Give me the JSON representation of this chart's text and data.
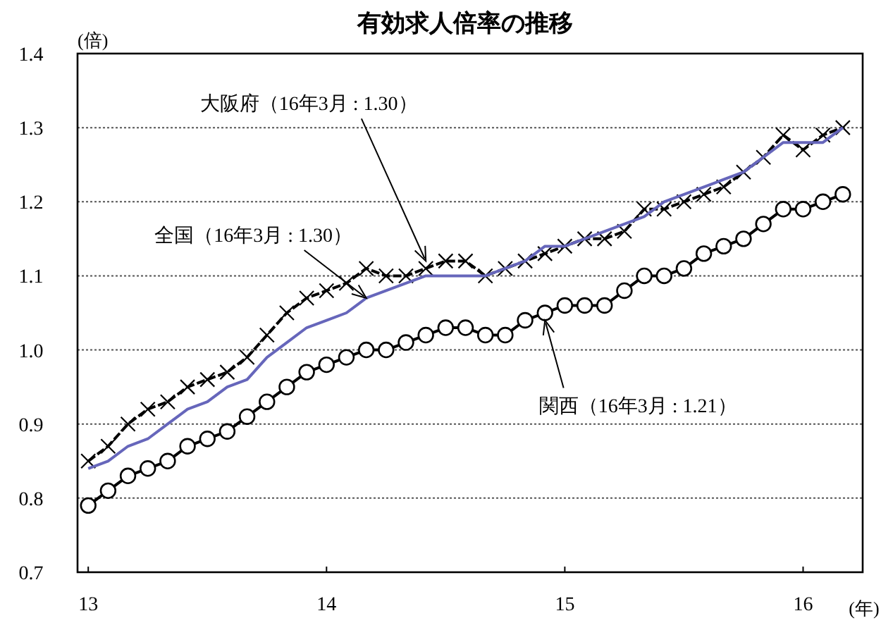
{
  "chart_data": {
    "type": "line",
    "title": "有効求人倍率の推移",
    "ylabel": "(倍)",
    "xlabel": "(年)",
    "x": [
      "2013-01",
      "2013-02",
      "2013-03",
      "2013-04",
      "2013-05",
      "2013-06",
      "2013-07",
      "2013-08",
      "2013-09",
      "2013-10",
      "2013-11",
      "2013-12",
      "2014-01",
      "2014-02",
      "2014-03",
      "2014-04",
      "2014-05",
      "2014-06",
      "2014-07",
      "2014-08",
      "2014-09",
      "2014-10",
      "2014-11",
      "2014-12",
      "2015-01",
      "2015-02",
      "2015-03",
      "2015-04",
      "2015-05",
      "2015-06",
      "2015-07",
      "2015-08",
      "2015-09",
      "2015-10",
      "2015-11",
      "2015-12",
      "2016-01",
      "2016-02",
      "2016-03"
    ],
    "series": [
      {
        "color": "#000000",
        "marker": "cross",
        "line_style": "dashed",
        "values": [
          0.85,
          0.87,
          0.9,
          0.92,
          0.93,
          0.95,
          0.96,
          0.97,
          0.99,
          1.02,
          1.05,
          1.07,
          1.08,
          1.09,
          1.11,
          1.1,
          1.1,
          1.11,
          1.12,
          1.12,
          1.1,
          1.11,
          1.12,
          1.13,
          1.14,
          1.15,
          1.15,
          1.16,
          1.19,
          1.19,
          1.2,
          1.21,
          1.22,
          1.24,
          1.26,
          1.29,
          1.27,
          1.29,
          1.3
        ]
      },
      {
        "color": "#6666bb",
        "marker": "none",
        "line_style": "solid",
        "values": [
          0.84,
          0.85,
          0.87,
          0.88,
          0.9,
          0.92,
          0.93,
          0.95,
          0.96,
          0.99,
          1.01,
          1.03,
          1.04,
          1.05,
          1.07,
          1.08,
          1.09,
          1.1,
          1.1,
          1.1,
          1.1,
          1.11,
          1.12,
          1.14,
          1.14,
          1.15,
          1.16,
          1.17,
          1.18,
          1.2,
          1.21,
          1.22,
          1.23,
          1.24,
          1.26,
          1.28,
          1.28,
          1.28,
          1.3
        ]
      },
      {
        "color": "#000000",
        "marker": "circle",
        "line_style": "solid",
        "values": [
          0.79,
          0.81,
          0.83,
          0.84,
          0.85,
          0.87,
          0.88,
          0.89,
          0.91,
          0.93,
          0.95,
          0.97,
          0.98,
          0.99,
          1.0,
          1.0,
          1.01,
          1.02,
          1.03,
          1.03,
          1.02,
          1.02,
          1.04,
          1.05,
          1.06,
          1.06,
          1.06,
          1.08,
          1.1,
          1.1,
          1.11,
          1.13,
          1.14,
          1.15,
          1.17,
          1.19,
          1.19,
          1.2,
          1.21
        ]
      }
    ],
    "xlim": [
      "2012-12-15",
      "2016-04-01"
    ],
    "xticks": [
      {
        "value": "2013-01",
        "label": "13"
      },
      {
        "value": "2014-01",
        "label": "14"
      },
      {
        "value": "2015-01",
        "label": "15"
      },
      {
        "value": "2016-01",
        "label": "16"
      }
    ],
    "ylim": [
      0.7,
      1.4
    ],
    "yticks": [
      {
        "value": 0.7,
        "label": "0.7"
      },
      {
        "value": 0.8,
        "label": "0.8"
      },
      {
        "value": 0.9,
        "label": "0.9"
      },
      {
        "value": 1.0,
        "label": "1.0"
      },
      {
        "value": 1.1,
        "label": "1.1"
      },
      {
        "value": 1.2,
        "label": "1.2"
      },
      {
        "value": 1.3,
        "label": "1.3"
      },
      {
        "value": 1.4,
        "label": "1.4"
      }
    ],
    "grid": "y",
    "annotations": [
      {
        "text": "大阪府（16年3月 : 1.30）",
        "x": "2014-06",
        "y": 1.12
      },
      {
        "text": "全国（16年3月 : 1.30）",
        "x": "2014-03",
        "y": 1.07
      },
      {
        "text": "関西（16年3月 : 1.21）",
        "x": "2014-12",
        "y": 1.04
      }
    ]
  }
}
